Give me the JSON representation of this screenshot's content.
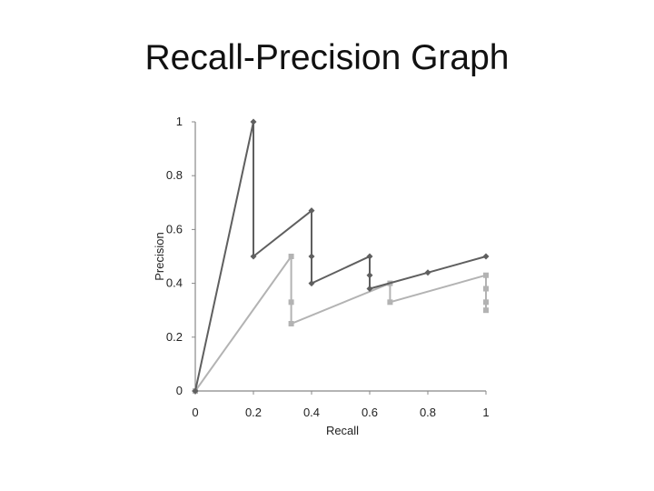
{
  "slide": {
    "title": "Recall-Precision Graph"
  },
  "chart_data": {
    "type": "line",
    "title": "",
    "xlabel": "Recall",
    "ylabel": "Precision",
    "xlim": [
      0,
      1
    ],
    "ylim": [
      0,
      1
    ],
    "x_ticks": [
      "0",
      "0.2",
      "0.4",
      "0.6",
      "0.8",
      "1"
    ],
    "y_ticks": [
      "0",
      "0.2",
      "0.4",
      "0.6",
      "0.8",
      "1"
    ],
    "grid": false,
    "legend": "none",
    "series": [
      {
        "color": "#5f5f5f",
        "marker": "diamond",
        "points": [
          [
            0,
            0
          ],
          [
            0.2,
            1
          ],
          [
            0.2,
            0.5
          ],
          [
            0.4,
            0.67
          ],
          [
            0.4,
            0.5
          ],
          [
            0.4,
            0.4
          ],
          [
            0.6,
            0.5
          ],
          [
            0.6,
            0.43
          ],
          [
            0.6,
            0.38
          ],
          [
            0.8,
            0.44
          ],
          [
            1,
            0.5
          ]
        ]
      },
      {
        "color": "#b3b3b3",
        "marker": "square",
        "points": [
          [
            0,
            0
          ],
          [
            0.33,
            0.5
          ],
          [
            0.33,
            0.33
          ],
          [
            0.33,
            0.25
          ],
          [
            0.67,
            0.4
          ],
          [
            0.67,
            0.33
          ],
          [
            1,
            0.43
          ],
          [
            1,
            0.38
          ],
          [
            1,
            0.33
          ],
          [
            1,
            0.3
          ]
        ]
      }
    ]
  }
}
